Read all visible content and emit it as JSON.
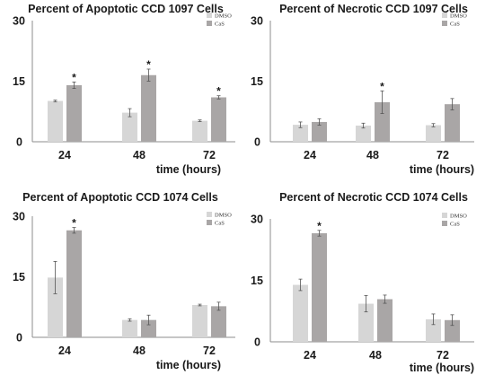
{
  "colors": {
    "DMSO": "#d6d6d6",
    "CaS": "#a9a6a6",
    "axis": "#8c8c8c",
    "error": "#555555"
  },
  "chart_data": [
    {
      "type": "bar",
      "title": "Percent of Apoptotic CCD 1097 Cells",
      "xlabel": "time (hours)",
      "ylabel": "",
      "categories": [
        "24",
        "48",
        "72"
      ],
      "yticks": [
        "0",
        "15",
        "30"
      ],
      "ylim": [
        0,
        30
      ],
      "legend": "top-right",
      "series": [
        {
          "name": "DMSO",
          "values": [
            10.1,
            7.2,
            5.2
          ],
          "errors": [
            0.2,
            1.0,
            0.2
          ]
        },
        {
          "name": "CaS",
          "values": [
            14.0,
            16.5,
            11.0
          ],
          "errors": [
            0.8,
            1.5,
            0.4
          ]
        }
      ],
      "significance": [
        {
          "category": "24",
          "series": "CaS",
          "mark": "*"
        },
        {
          "category": "48",
          "series": "CaS",
          "mark": "*"
        },
        {
          "category": "72",
          "series": "CaS",
          "mark": "*"
        }
      ]
    },
    {
      "type": "bar",
      "title": "Percent of Necrotic CCD 1097 Cells",
      "xlabel": "time (hours)",
      "ylabel": "",
      "categories": [
        "24",
        "48",
        "72"
      ],
      "yticks": [
        "0",
        "15",
        "30"
      ],
      "ylim": [
        0,
        30
      ],
      "legend": "top-right",
      "series": [
        {
          "name": "DMSO",
          "values": [
            4.2,
            4.0,
            4.1
          ],
          "errors": [
            0.7,
            0.6,
            0.4
          ]
        },
        {
          "name": "CaS",
          "values": [
            4.9,
            9.8,
            9.3
          ],
          "errors": [
            0.8,
            2.8,
            1.4
          ]
        }
      ],
      "significance": [
        {
          "category": "48",
          "series": "CaS",
          "mark": "*"
        }
      ]
    },
    {
      "type": "bar",
      "title": "Percent of Apoptotic CCD 1074 Cells",
      "xlabel": "time (hours)",
      "ylabel": "",
      "categories": [
        "24",
        "48",
        "72"
      ],
      "yticks": [
        "0",
        "15",
        "30"
      ],
      "ylim": [
        0,
        30
      ],
      "legend": "top-right",
      "series": [
        {
          "name": "DMSO",
          "values": [
            14.8,
            4.3,
            8.0
          ],
          "errors": [
            4.0,
            0.3,
            0.2
          ]
        },
        {
          "name": "CaS",
          "values": [
            26.5,
            4.3,
            7.7
          ],
          "errors": [
            0.7,
            1.2,
            1.0
          ]
        }
      ],
      "significance": [
        {
          "category": "24",
          "series": "CaS",
          "mark": "*"
        }
      ]
    },
    {
      "type": "bar",
      "title": "Percent of Necrotic CCD 1074 Cells",
      "xlabel": "time (hours)",
      "ylabel": "",
      "categories": [
        "24",
        "48",
        "72"
      ],
      "yticks": [
        "0",
        "15",
        "30"
      ],
      "ylim": [
        0,
        30
      ],
      "legend": "top-right",
      "series": [
        {
          "name": "DMSO",
          "values": [
            13.9,
            9.3,
            5.5
          ],
          "errors": [
            1.4,
            2.0,
            1.3
          ]
        },
        {
          "name": "CaS",
          "values": [
            26.5,
            10.4,
            5.3
          ],
          "errors": [
            0.7,
            1.0,
            1.3
          ]
        }
      ],
      "significance": [
        {
          "category": "24",
          "series": "CaS",
          "mark": "*"
        }
      ]
    }
  ]
}
